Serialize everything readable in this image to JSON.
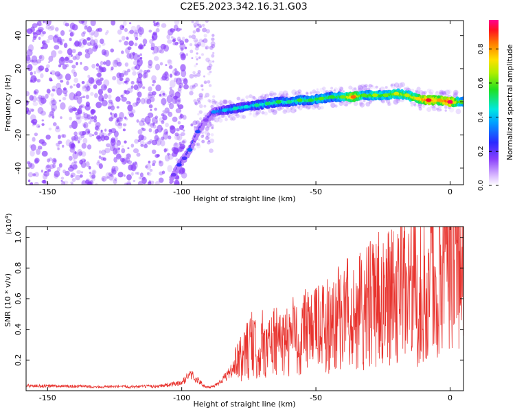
{
  "title": "C2E5.2023.342.16.31.G03",
  "colors": {
    "series_line": "#e8332e",
    "scatter_base": "#8a3ffb"
  },
  "chart_data": [
    {
      "type": "heatmap",
      "xlabel": "Height of straight line (km)",
      "ylabel": "Frequency (Hz)",
      "xlim": [
        -158,
        5
      ],
      "ylim": [
        -50,
        49
      ],
      "xticks": [
        -150,
        -100,
        -50,
        0
      ],
      "yticks": [
        -40,
        -20,
        0,
        20,
        40
      ],
      "grid": false,
      "colorbar": {
        "label": "Normalized spectral amplitude",
        "range": [
          0,
          0.97
        ],
        "ticks": [
          0.0,
          0.2,
          0.4,
          0.6,
          0.8
        ],
        "colormap": "rainbow"
      },
      "ridge_points": [
        {
          "x": -103,
          "y": -44,
          "v": 0.18
        },
        {
          "x": -101,
          "y": -38,
          "v": 0.25
        },
        {
          "x": -99,
          "y": -34,
          "v": 0.22
        },
        {
          "x": -97,
          "y": -29,
          "v": 0.3
        },
        {
          "x": -94,
          "y": -18,
          "v": 0.28
        },
        {
          "x": -91,
          "y": -11,
          "v": 0.15
        },
        {
          "x": -88,
          "y": -6,
          "v": 0.35
        },
        {
          "x": -84,
          "y": -5,
          "v": 0.42
        },
        {
          "x": -80,
          "y": -4,
          "v": 0.48
        },
        {
          "x": -76,
          "y": -3,
          "v": 0.45
        },
        {
          "x": -72,
          "y": -2,
          "v": 0.5
        },
        {
          "x": -68,
          "y": -1,
          "v": 0.52
        },
        {
          "x": -64,
          "y": 0,
          "v": 0.55
        },
        {
          "x": -60,
          "y": 0,
          "v": 0.5
        },
        {
          "x": -56,
          "y": 1,
          "v": 0.58
        },
        {
          "x": -52,
          "y": 1,
          "v": 0.55
        },
        {
          "x": -48,
          "y": 2,
          "v": 0.6
        },
        {
          "x": -44,
          "y": 3,
          "v": 0.57
        },
        {
          "x": -40,
          "y": 3,
          "v": 0.62
        },
        {
          "x": -36,
          "y": 3,
          "v": 0.85
        },
        {
          "x": -32,
          "y": 4,
          "v": 0.6
        },
        {
          "x": -28,
          "y": 4,
          "v": 0.66
        },
        {
          "x": -24,
          "y": 4,
          "v": 0.62
        },
        {
          "x": -20,
          "y": 5,
          "v": 0.7
        },
        {
          "x": -16,
          "y": 4,
          "v": 0.68
        },
        {
          "x": -12,
          "y": 2,
          "v": 0.75
        },
        {
          "x": -8,
          "y": 1,
          "v": 0.92
        },
        {
          "x": -4,
          "y": 1,
          "v": 0.8
        },
        {
          "x": 0,
          "y": 0,
          "v": 0.95
        },
        {
          "x": 4,
          "y": 0,
          "v": 0.6
        }
      ]
    },
    {
      "type": "line",
      "xlabel": "Height of straight line (km)",
      "ylabel": "SNR (10 * v/v)",
      "y_multiplier": "(x10^4)",
      "y_multiplier_base": "(x10",
      "y_multiplier_exp": "4",
      "y_multiplier_close": ")",
      "xlim": [
        -158,
        5
      ],
      "ylim": [
        0,
        10700
      ],
      "xticks": [
        -150,
        -100,
        -50,
        0
      ],
      "yticks": [
        0.2,
        0.4,
        0.6,
        0.8,
        1.0
      ],
      "grid": false,
      "series": [
        {
          "x": [
            -158,
            -150,
            -140,
            -130,
            -120,
            -110,
            -100,
            -97,
            -94,
            -91,
            -88,
            -85,
            -82,
            -79,
            -76,
            -74,
            -72,
            -70,
            -68,
            -66,
            -64,
            -62,
            -60,
            -58,
            -56,
            -54,
            -52,
            -50,
            -48,
            -46,
            -44,
            -42,
            -40,
            -38,
            -36,
            -34,
            -32,
            -30,
            -28,
            -26,
            -24,
            -22,
            -20,
            -18,
            -16,
            -14,
            -12,
            -10,
            -8,
            -7,
            -6,
            -5,
            -4,
            -2,
            0,
            2,
            4,
            5
          ],
          "values": [
            320,
            300,
            280,
            250,
            260,
            280,
            500,
            1100,
            700,
            200,
            300,
            700,
            1200,
            1800,
            2600,
            3000,
            2500,
            3100,
            2800,
            3300,
            3000,
            3500,
            3100,
            3700,
            3300,
            4000,
            3500,
            4200,
            3800,
            4500,
            4000,
            4800,
            4200,
            5200,
            4600,
            5600,
            5000,
            5900,
            5300,
            6200,
            5600,
            6500,
            5800,
            6800,
            6000,
            6600,
            6100,
            6900,
            7200,
            10700,
            6000,
            4200,
            8400,
            8700,
            8200,
            8900,
            8100,
            8300
          ]
        }
      ]
    }
  ]
}
